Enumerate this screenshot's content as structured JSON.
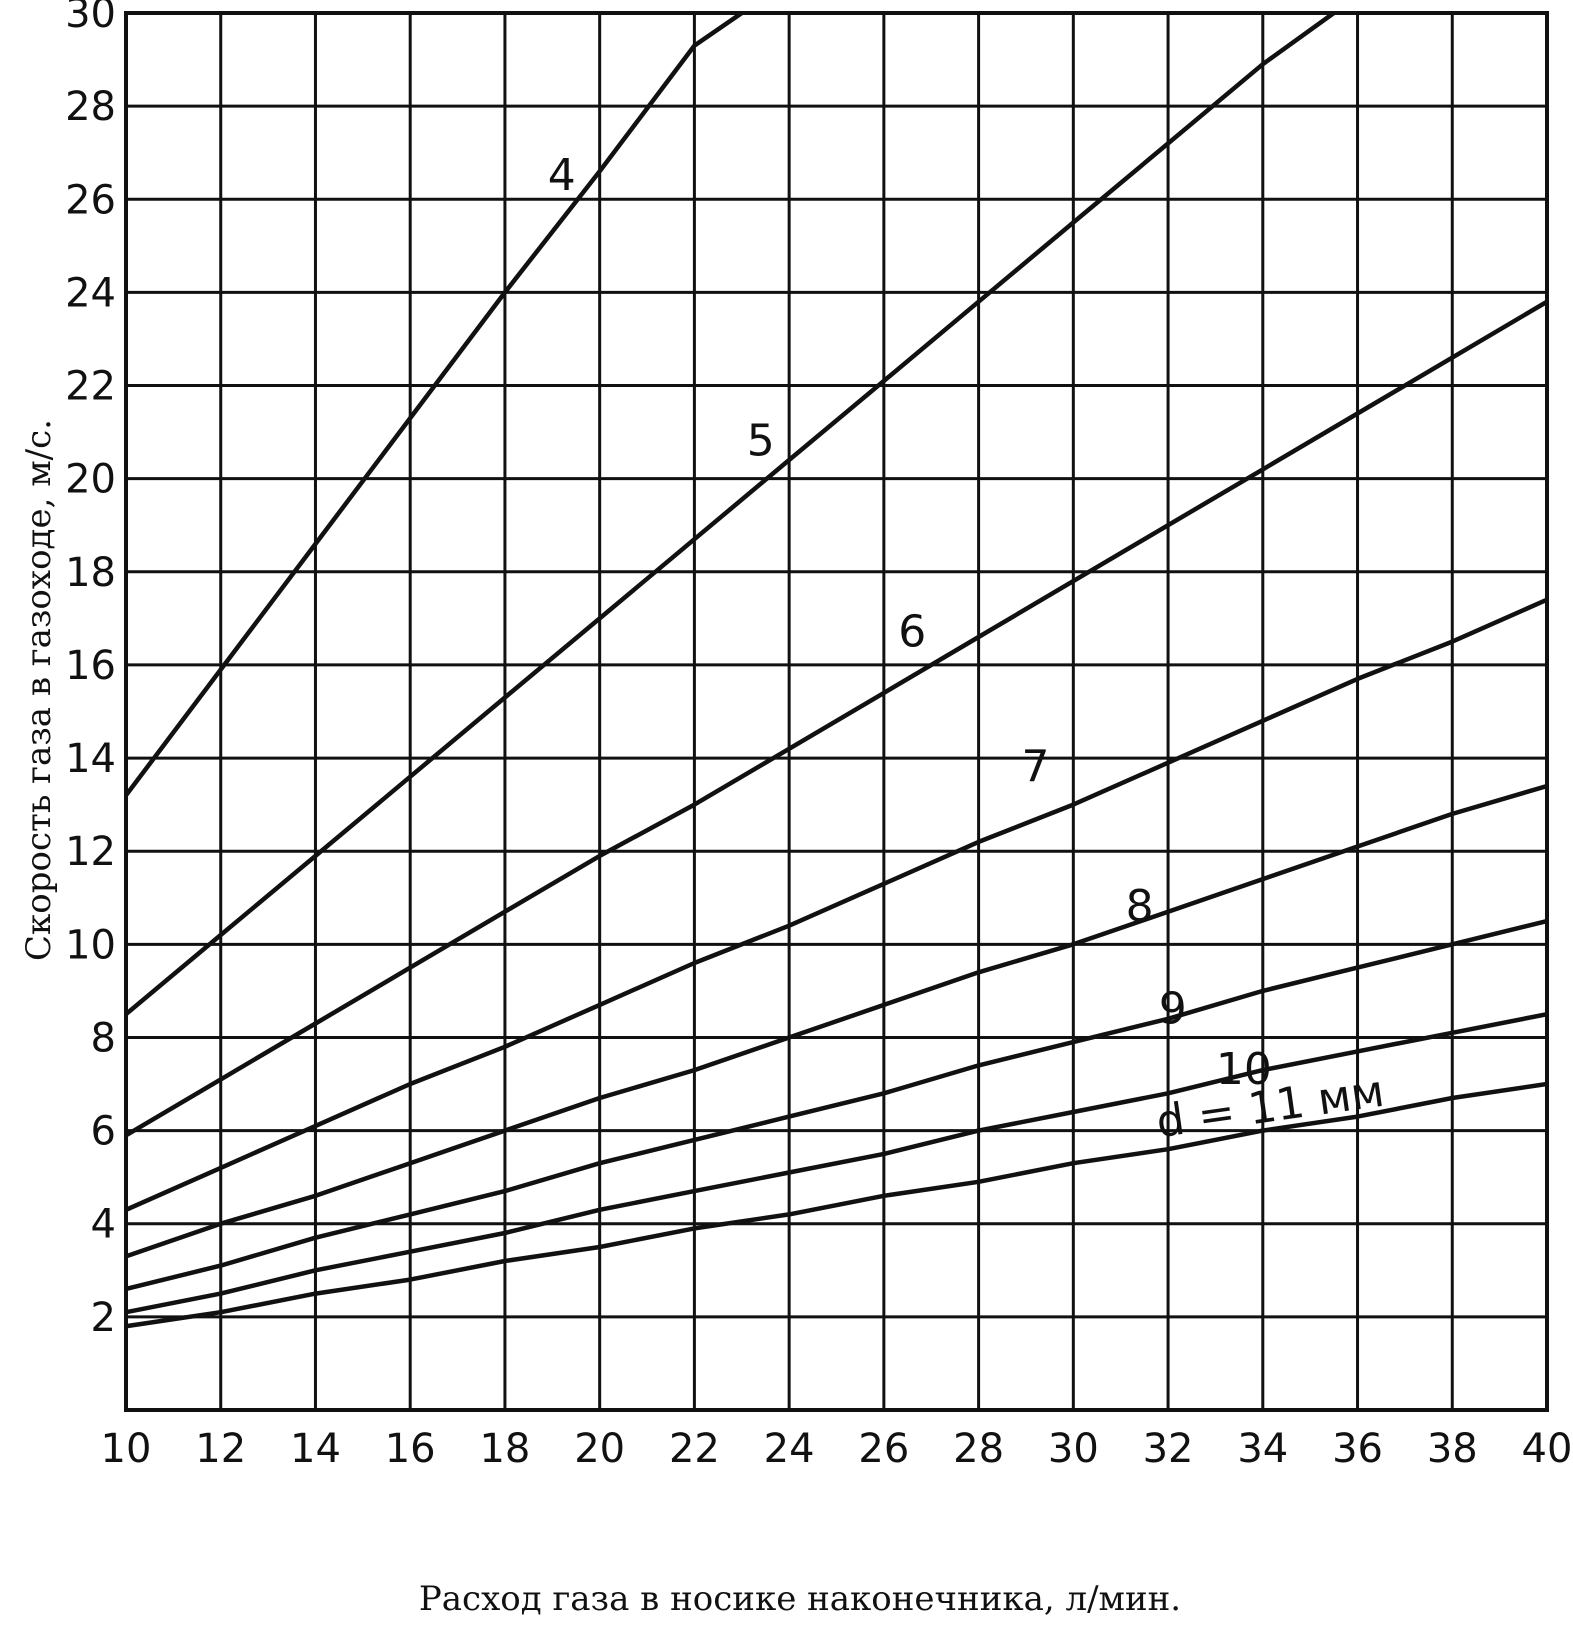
{
  "chart_data": {
    "type": "line",
    "xlabel": "Расход газа в носике наконечника, л/мин.",
    "ylabel": "Скорость газа в газоходе, м/с.",
    "xlim": [
      10,
      40
    ],
    "ylim": [
      0,
      30
    ],
    "x_ticks": [
      "10",
      "12",
      "14",
      "16",
      "18",
      "20",
      "22",
      "24",
      "26",
      "28",
      "30",
      "32",
      "34",
      "36",
      "38",
      "40"
    ],
    "y_ticks": [
      "2",
      "4",
      "6",
      "8",
      "10",
      "12",
      "14",
      "16",
      "18",
      "20",
      "22",
      "24",
      "26",
      "28",
      "30"
    ],
    "grid": true,
    "series": [
      {
        "name": "4",
        "x": [
          10,
          12,
          14,
          16,
          18,
          20,
          22,
          23
        ],
        "y": [
          13.2,
          15.9,
          18.6,
          21.3,
          24.0,
          26.6,
          29.3,
          30.0
        ]
      },
      {
        "name": "5",
        "x": [
          10,
          12,
          14,
          16,
          18,
          20,
          22,
          24,
          26,
          28,
          30,
          32,
          34,
          35.5
        ],
        "y": [
          8.5,
          10.2,
          11.9,
          13.6,
          15.3,
          17.0,
          18.7,
          20.4,
          22.1,
          23.8,
          25.5,
          27.2,
          28.9,
          30.0
        ]
      },
      {
        "name": "6",
        "x": [
          10,
          12,
          14,
          16,
          18,
          20,
          22,
          24,
          26,
          28,
          30,
          32,
          34,
          36,
          38,
          40
        ],
        "y": [
          5.9,
          7.1,
          8.3,
          9.5,
          10.7,
          11.9,
          13.0,
          14.2,
          15.4,
          16.6,
          17.8,
          19.0,
          20.2,
          21.4,
          22.6,
          23.8
        ]
      },
      {
        "name": "7",
        "x": [
          10,
          12,
          14,
          16,
          18,
          20,
          22,
          24,
          26,
          28,
          30,
          32,
          34,
          36,
          38,
          40
        ],
        "y": [
          4.3,
          5.2,
          6.1,
          7.0,
          7.8,
          8.7,
          9.6,
          10.4,
          11.3,
          12.2,
          13.0,
          13.9,
          14.8,
          15.7,
          16.5,
          17.4
        ]
      },
      {
        "name": "8",
        "x": [
          10,
          12,
          14,
          16,
          18,
          20,
          22,
          24,
          26,
          28,
          30,
          32,
          34,
          36,
          38,
          40
        ],
        "y": [
          3.3,
          4.0,
          4.6,
          5.3,
          6.0,
          6.7,
          7.3,
          8.0,
          8.7,
          9.4,
          10.0,
          10.7,
          11.4,
          12.1,
          12.8,
          13.4
        ]
      },
      {
        "name": "9",
        "x": [
          10,
          12,
          14,
          16,
          18,
          20,
          22,
          24,
          26,
          28,
          30,
          32,
          34,
          36,
          38,
          40
        ],
        "y": [
          2.6,
          3.1,
          3.7,
          4.2,
          4.7,
          5.3,
          5.8,
          6.3,
          6.8,
          7.4,
          7.9,
          8.4,
          9.0,
          9.5,
          10.0,
          10.5
        ]
      },
      {
        "name": "10",
        "x": [
          10,
          12,
          14,
          16,
          18,
          20,
          22,
          24,
          26,
          28,
          30,
          32,
          34,
          36,
          38,
          40
        ],
        "y": [
          2.1,
          2.5,
          3.0,
          3.4,
          3.8,
          4.3,
          4.7,
          5.1,
          5.5,
          6.0,
          6.4,
          6.8,
          7.3,
          7.7,
          8.1,
          8.5
        ]
      },
      {
        "name": "d = 11 мм",
        "x": [
          10,
          12,
          14,
          16,
          18,
          20,
          22,
          24,
          26,
          28,
          30,
          32,
          34,
          36,
          38,
          40
        ],
        "y": [
          1.8,
          2.1,
          2.5,
          2.8,
          3.2,
          3.5,
          3.9,
          4.2,
          4.6,
          4.9,
          5.3,
          5.6,
          6.0,
          6.3,
          6.7,
          7.0
        ]
      }
    ],
    "curve_labels": [
      {
        "text": "4",
        "x": 19.2,
        "y": 26.2
      },
      {
        "text": "5",
        "x": 23.4,
        "y": 20.5
      },
      {
        "text": "6",
        "x": 26.6,
        "y": 16.4
      },
      {
        "text": "7",
        "x": 29.2,
        "y": 13.5
      },
      {
        "text": "8",
        "x": 31.4,
        "y": 10.5
      },
      {
        "text": "9",
        "x": 32.1,
        "y": 8.3
      },
      {
        "text": "10",
        "x": 33.6,
        "y": 7.0
      },
      {
        "text": "d = 11 мм",
        "x": 34.2,
        "y": 6.2
      }
    ]
  }
}
